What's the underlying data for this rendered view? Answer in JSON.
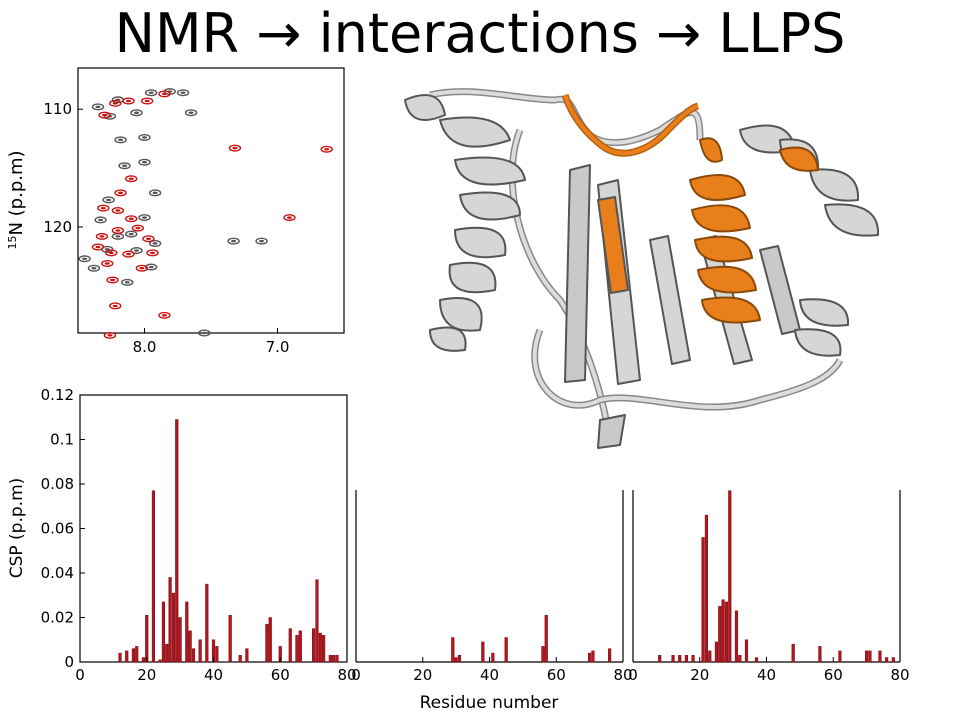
{
  "slide": {
    "title": "NMR → interactions → LLPS"
  },
  "chart_data": [
    {
      "type": "scatter",
      "subtype": "hsqc-spectrum",
      "ylabel_sup": "15",
      "ylabel_main": "N (p.p.m)",
      "xlim": [
        8.5,
        6.5
      ],
      "ylim": [
        129,
        106.5
      ],
      "xticks": [
        8.0,
        7.0
      ],
      "xtick_labels": [
        "8.0",
        "7.0"
      ],
      "yticks": [
        110,
        120
      ],
      "ytick_labels": [
        "110",
        "120"
      ],
      "colors": {
        "reference": "#555555",
        "bound": "#cc1111"
      },
      "series": [
        {
          "role": "reference",
          "points": [
            [
              8.2,
              109.2
            ],
            [
              8.35,
              109.8
            ],
            [
              8.26,
              110.6
            ],
            [
              7.95,
              108.6
            ],
            [
              7.81,
              108.5
            ],
            [
              7.71,
              108.6
            ],
            [
              8.06,
              110.3
            ],
            [
              7.65,
              110.3
            ],
            [
              8.0,
              112.4
            ],
            [
              8.18,
              112.6
            ],
            [
              8.0,
              114.5
            ],
            [
              8.15,
              114.8
            ],
            [
              7.92,
              117.1
            ],
            [
              8.27,
              117.7
            ],
            [
              8.33,
              119.4
            ],
            [
              8.0,
              119.2
            ],
            [
              7.92,
              121.4
            ],
            [
              8.2,
              120.8
            ],
            [
              8.45,
              122.7
            ],
            [
              8.38,
              123.5
            ],
            [
              7.95,
              123.4
            ],
            [
              8.13,
              124.7
            ],
            [
              7.33,
              121.2
            ],
            [
              7.12,
              121.2
            ],
            [
              7.55,
              129.0
            ],
            [
              8.06,
              122.0
            ],
            [
              8.28,
              121.9
            ],
            [
              8.1,
              120.6
            ]
          ]
        },
        {
          "role": "bound",
          "points": [
            [
              8.22,
              109.5
            ],
            [
              8.12,
              109.3
            ],
            [
              7.98,
              109.3
            ],
            [
              7.85,
              108.7
            ],
            [
              8.3,
              110.5
            ],
            [
              7.32,
              113.3
            ],
            [
              6.63,
              113.4
            ],
            [
              8.1,
              115.9
            ],
            [
              8.18,
              117.1
            ],
            [
              8.31,
              118.4
            ],
            [
              8.2,
              118.6
            ],
            [
              8.1,
              119.3
            ],
            [
              8.05,
              120.1
            ],
            [
              8.2,
              120.3
            ],
            [
              8.35,
              121.7
            ],
            [
              8.25,
              122.2
            ],
            [
              8.12,
              122.3
            ],
            [
              7.97,
              121.0
            ],
            [
              7.94,
              122.2
            ],
            [
              8.28,
              123.1
            ],
            [
              8.24,
              124.5
            ],
            [
              8.22,
              126.7
            ],
            [
              8.26,
              129.2
            ],
            [
              7.85,
              127.5
            ],
            [
              6.91,
              119.2
            ],
            [
              8.32,
              120.8
            ],
            [
              8.02,
              123.5
            ]
          ]
        }
      ]
    },
    {
      "type": "bar",
      "subtype": "csp-panel-1",
      "ylabel": "CSP (p.p.m)",
      "ylim": [
        0,
        0.12
      ],
      "xlim": [
        0,
        80
      ],
      "yticks": [
        0,
        0.02,
        0.04,
        0.06,
        0.08,
        0.1,
        0.12
      ],
      "ytick_labels": [
        "0",
        "0.02",
        "0.04",
        "0.06",
        "0.08",
        "0.1",
        "0.12"
      ],
      "xticks": [
        0,
        20,
        40,
        60,
        80
      ],
      "xtick_labels": [
        "0",
        "20",
        "40",
        "60",
        "80"
      ],
      "color": "#b0171f",
      "x": [
        12,
        14,
        16,
        17,
        19,
        20,
        22,
        24,
        25,
        26,
        27,
        28,
        29,
        30,
        32,
        33,
        34,
        36,
        38,
        40,
        41,
        45,
        48,
        50,
        56,
        57,
        60,
        63,
        65,
        66,
        70,
        71,
        72,
        73,
        75,
        76,
        77
      ],
      "values": [
        0.004,
        0.005,
        0.006,
        0.007,
        0.002,
        0.021,
        0.077,
        0.001,
        0.027,
        0.008,
        0.038,
        0.031,
        0.109,
        0.02,
        0.027,
        0.014,
        0.006,
        0.01,
        0.035,
        0.01,
        0.007,
        0.021,
        0.003,
        0.006,
        0.017,
        0.02,
        0.007,
        0.015,
        0.012,
        0.014,
        0.015,
        0.037,
        0.013,
        0.012,
        0.003,
        0.003,
        0.003
      ]
    },
    {
      "type": "bar",
      "subtype": "csp-panel-2",
      "ylim": [
        0,
        0.12
      ],
      "xlim": [
        0,
        80
      ],
      "xticks": [
        0,
        20,
        40,
        60,
        80
      ],
      "xtick_labels": [
        "0",
        "20",
        "40",
        "60",
        "80"
      ],
      "xlabel": "Residue number",
      "color": "#b0171f",
      "x": [
        29,
        30,
        31,
        38,
        41,
        45,
        56,
        57,
        70,
        71,
        76
      ],
      "values": [
        0.011,
        0.002,
        0.003,
        0.009,
        0.004,
        0.011,
        0.007,
        0.021,
        0.004,
        0.005,
        0.006
      ]
    },
    {
      "type": "bar",
      "subtype": "csp-panel-3",
      "ylim": [
        0,
        0.12
      ],
      "xlim": [
        0,
        80
      ],
      "xticks": [
        0,
        20,
        40,
        60,
        80
      ],
      "xtick_labels": [
        "0",
        "20",
        "40",
        "60",
        "80"
      ],
      "color": "#b0171f",
      "x": [
        8,
        12,
        14,
        16,
        18,
        21,
        22,
        23,
        25,
        26,
        27,
        28,
        29,
        31,
        32,
        34,
        37,
        48,
        56,
        62,
        70,
        71,
        74,
        76,
        78
      ],
      "values": [
        0.003,
        0.003,
        0.003,
        0.003,
        0.003,
        0.056,
        0.066,
        0.005,
        0.009,
        0.025,
        0.028,
        0.027,
        0.077,
        0.023,
        0.003,
        0.01,
        0.002,
        0.008,
        0.007,
        0.005,
        0.005,
        0.005,
        0.005,
        0.002,
        0.002
      ]
    }
  ],
  "structure": {
    "colors": {
      "helix_grey": "#d6d6d6",
      "highlight": "#e87f1a",
      "outline": "#555555"
    }
  }
}
